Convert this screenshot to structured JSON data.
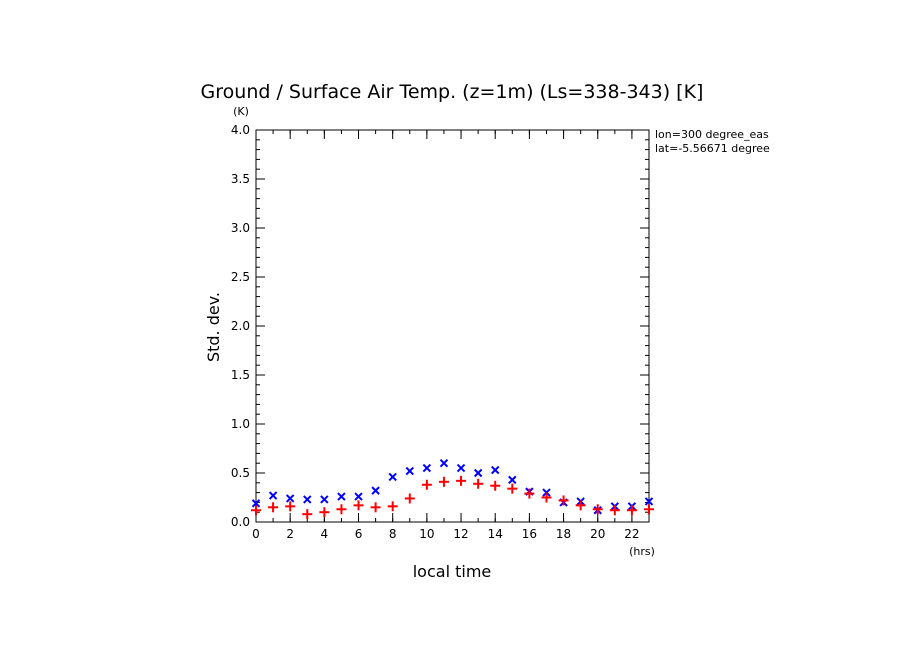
{
  "chart_data": {
    "type": "scatter",
    "title": "Ground / Surface Air Temp. (z=1m) (Ls=338-343) [K]",
    "xlabel": "local time",
    "ylabel": "Std. dev.",
    "x_unit": "(hrs)",
    "y_unit": "(K)",
    "xlim": [
      0,
      23
    ],
    "ylim": [
      0,
      4.0
    ],
    "x_ticks": [
      "0",
      "2",
      "4",
      "6",
      "8",
      "10",
      "12",
      "14",
      "16",
      "18",
      "20",
      "22"
    ],
    "y_ticks": [
      "0.0",
      "0.5",
      "1.0",
      "1.5",
      "2.0",
      "2.5",
      "3.0",
      "3.5",
      "4.0"
    ],
    "grid": false,
    "annotations": [
      "lon=300 degree_eas",
      "lat=-5.56671 degree"
    ],
    "series": [
      {
        "marker": "x",
        "color": "#0000ff",
        "x": [
          0,
          1,
          2,
          3,
          4,
          5,
          6,
          7,
          8,
          9,
          10,
          11,
          12,
          13,
          14,
          15,
          16,
          17,
          18,
          19,
          20,
          21,
          22,
          23
        ],
        "values": [
          0.19,
          0.27,
          0.24,
          0.23,
          0.23,
          0.26,
          0.26,
          0.32,
          0.46,
          0.52,
          0.55,
          0.6,
          0.55,
          0.5,
          0.53,
          0.43,
          0.31,
          0.3,
          0.2,
          0.21,
          0.12,
          0.16,
          0.16,
          0.21
        ]
      },
      {
        "marker": "+",
        "color": "#ff0000",
        "x": [
          0,
          1,
          2,
          3,
          4,
          5,
          6,
          7,
          8,
          9,
          10,
          11,
          12,
          13,
          14,
          15,
          16,
          17,
          18,
          19,
          20,
          21,
          22,
          23
        ],
        "values": [
          0.12,
          0.15,
          0.16,
          0.08,
          0.1,
          0.13,
          0.17,
          0.15,
          0.16,
          0.24,
          0.38,
          0.41,
          0.42,
          0.39,
          0.37,
          0.34,
          0.29,
          0.25,
          0.22,
          0.17,
          0.13,
          0.12,
          0.12,
          0.13
        ]
      }
    ]
  }
}
